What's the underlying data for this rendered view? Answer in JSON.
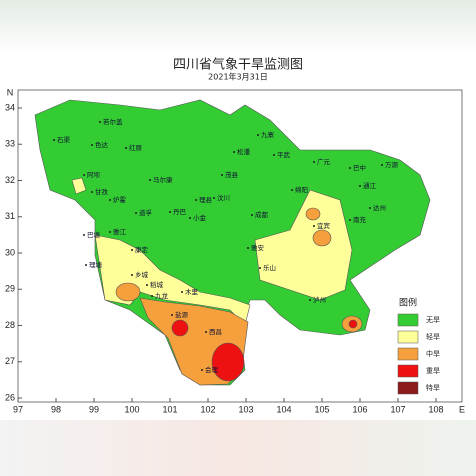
{
  "title": "四川省气象干旱监测图",
  "subtitle": "2021年3月31日",
  "axes": {
    "north_label": "N",
    "east_label": "E",
    "lon_ticks": [
      97,
      98,
      99,
      100,
      101,
      102,
      103,
      104,
      105,
      106,
      107,
      108
    ],
    "lat_ticks": [
      26,
      27,
      28,
      29,
      30,
      31,
      32,
      33,
      34
    ]
  },
  "legend": {
    "title": "图例",
    "items": [
      {
        "label": "无旱",
        "color": "#33cc33"
      },
      {
        "label": "轻旱",
        "color": "#ffff99"
      },
      {
        "label": "中旱",
        "color": "#f5a03c"
      },
      {
        "label": "重旱",
        "color": "#ee1111"
      },
      {
        "label": "特旱",
        "color": "#8b1a1a"
      }
    ]
  },
  "places": [
    "石渠",
    "色达",
    "若尔盖",
    "红原",
    "阿坝",
    "马尔康",
    "甘孜",
    "炉霍",
    "道孚",
    "丹巴",
    "小金",
    "理县",
    "汶川",
    "茂县",
    "松潘",
    "九寨",
    "平武",
    "广元",
    "巴中",
    "通江",
    "万源",
    "达州",
    "南充",
    "绵阳",
    "康定",
    "雅江",
    "理塘",
    "巴塘",
    "稻城",
    "乡城",
    "九龙",
    "木里",
    "盐源",
    "西昌",
    "会理",
    "宜宾",
    "泸州",
    "雅安",
    "乐山",
    "成都"
  ]
}
